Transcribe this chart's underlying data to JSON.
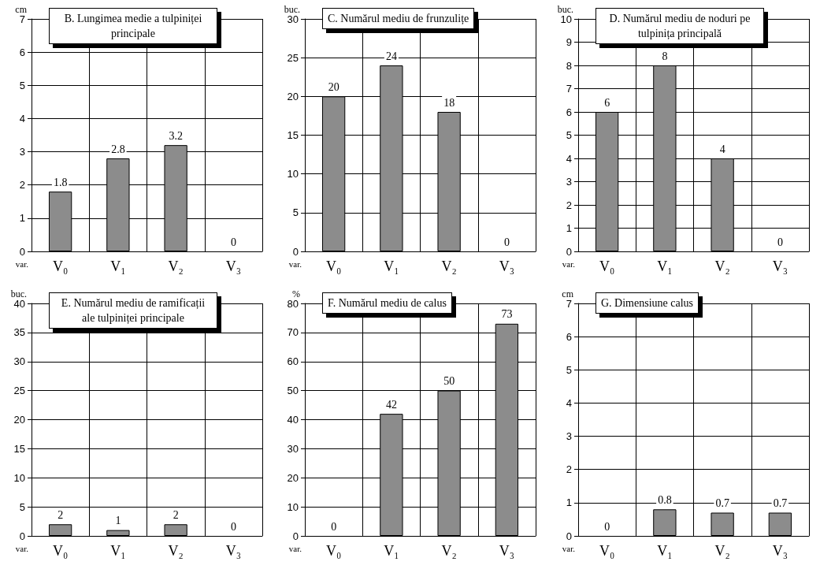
{
  "chart_data": [
    {
      "type": "bar",
      "title": "B. Lungimea medie a tulpiniței principale",
      "ylabel": "cm",
      "xlabel": "var.",
      "categories": [
        "V₀",
        "V₁",
        "V₂",
        "V₃"
      ],
      "values": [
        1.8,
        2.8,
        3.2,
        0
      ],
      "color": "#8c8c8c",
      "ylim": [
        0,
        7
      ],
      "yticks": [
        0,
        1,
        2,
        3,
        4,
        5,
        6,
        7
      ],
      "grid": true,
      "data_labels": true
    },
    {
      "type": "bar",
      "title": "C. Numărul mediu de frunzulițe",
      "ylabel": "buc.",
      "xlabel": "var.",
      "categories": [
        "V₀",
        "V₁",
        "V₂",
        "V₃"
      ],
      "values": [
        20,
        24,
        18,
        0
      ],
      "color": "#8c8c8c",
      "ylim": [
        0,
        30
      ],
      "yticks": [
        0,
        5,
        10,
        15,
        20,
        25,
        30
      ],
      "grid": true,
      "data_labels": true
    },
    {
      "type": "bar",
      "title": "D. Numărul mediu de noduri pe tulpinița principală",
      "ylabel": "buc.",
      "xlabel": "var.",
      "categories": [
        "V₀",
        "V₁",
        "V₂",
        "V₃"
      ],
      "values": [
        6,
        8,
        4,
        0
      ],
      "color": "#8c8c8c",
      "ylim": [
        0,
        10
      ],
      "yticks": [
        0,
        1,
        2,
        3,
        4,
        5,
        6,
        7,
        8,
        9,
        10
      ],
      "grid": true,
      "data_labels": true
    },
    {
      "type": "bar",
      "title": "E. Numărul mediu de ramificații ale tulpiniței principale",
      "ylabel": "buc.",
      "xlabel": "var.",
      "categories": [
        "V₀",
        "V₁",
        "V₂",
        "V₃"
      ],
      "values": [
        2,
        1,
        2,
        0
      ],
      "color": "#8c8c8c",
      "ylim": [
        0,
        40
      ],
      "yticks": [
        0,
        5,
        10,
        15,
        20,
        25,
        30,
        35,
        40
      ],
      "grid": true,
      "data_labels": true
    },
    {
      "type": "bar",
      "title": "F. Numărul mediu de calus",
      "ylabel": "%",
      "xlabel": "var.",
      "categories": [
        "V₀",
        "V₁",
        "V₂",
        "V₃"
      ],
      "values": [
        0,
        42,
        50,
        73
      ],
      "color": "#8c8c8c",
      "ylim": [
        0,
        80
      ],
      "yticks": [
        0,
        10,
        20,
        30,
        40,
        50,
        60,
        70,
        80
      ],
      "grid": true,
      "data_labels": true
    },
    {
      "type": "bar",
      "title": "G. Dimensiune calus",
      "ylabel": "cm",
      "xlabel": "var.",
      "categories": [
        "V₀",
        "V₁",
        "V₂",
        "V₃"
      ],
      "values": [
        0,
        0.8,
        0.7,
        0.7
      ],
      "color": "#8c8c8c",
      "ylim": [
        0,
        7
      ],
      "yticks": [
        0,
        1,
        2,
        3,
        4,
        5,
        6,
        7
      ],
      "grid": true,
      "data_labels": true
    }
  ]
}
